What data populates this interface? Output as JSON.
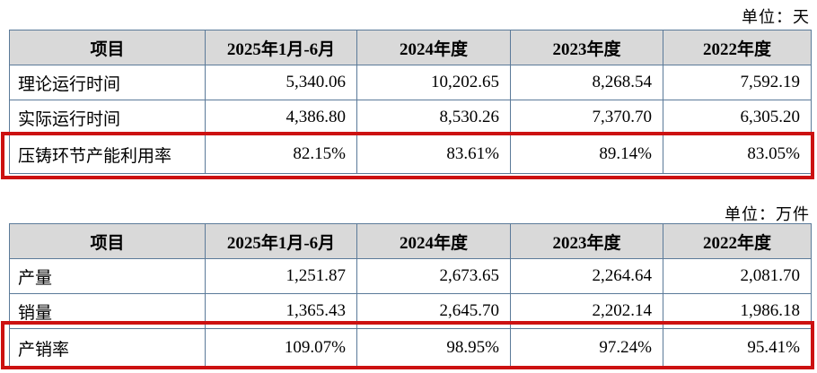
{
  "page": {
    "background": "#ffffff",
    "accent_red": "#cc1111",
    "table_border_color": "#5b7a99",
    "header_bg": "#d9d9d9"
  },
  "capacity_table": {
    "unit_label": "单位：天",
    "columns": [
      "项目",
      "2025年1月-6月",
      "2024年度",
      "2023年度",
      "2022年度"
    ],
    "rows": [
      {
        "label": "理论运行时间",
        "values": [
          "5,340.06",
          "10,202.65",
          "8,268.54",
          "7,592.19"
        ],
        "highlighted": false
      },
      {
        "label": "实际运行时间",
        "values": [
          "4,386.80",
          "8,530.26",
          "7,370.70",
          "6,305.20"
        ],
        "highlighted": false
      },
      {
        "label": "压铸环节产能利用率",
        "values": [
          "82.15%",
          "83.61%",
          "89.14%",
          "83.05%"
        ],
        "highlighted": true
      }
    ]
  },
  "production_sales_table": {
    "unit_label": "单位：万件",
    "columns": [
      "项目",
      "2025年1月-6月",
      "2024年度",
      "2023年度",
      "2022年度"
    ],
    "rows": [
      {
        "label": "产量",
        "values": [
          "1,251.87",
          "2,673.65",
          "2,264.64",
          "2,081.70"
        ],
        "highlighted": false
      },
      {
        "label": "销量",
        "values": [
          "1,365.43",
          "2,645.70",
          "2,202.14",
          "1,986.18"
        ],
        "highlighted": false
      },
      {
        "label": "产销率",
        "values": [
          "109.07%",
          "98.95%",
          "97.24%",
          "95.41%"
        ],
        "highlighted": true
      }
    ]
  }
}
